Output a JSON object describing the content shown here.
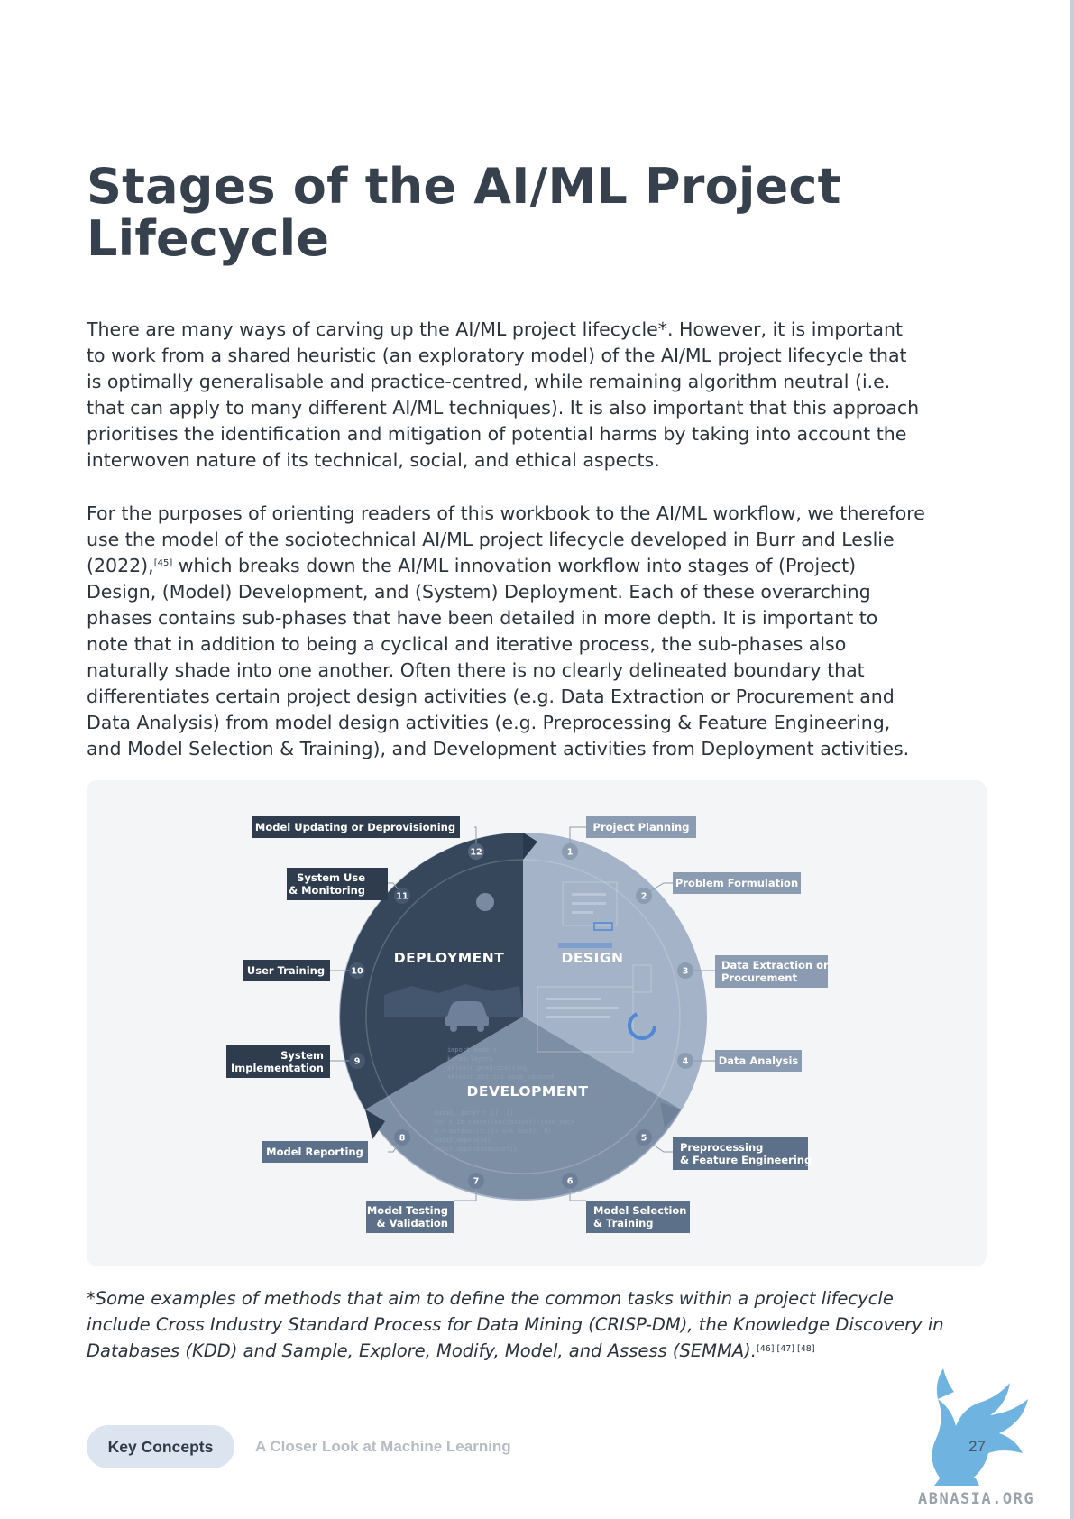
{
  "page": {
    "title": "Stages of the AI/ML Project Lifecycle",
    "para1": "There are many ways of carving up the AI/ML project lifecycle*. However, it is important to work from a shared heuristic (an exploratory model) of the AI/ML project lifecycle that is optimally generalisable and practice-centred, while remaining algorithm neutral (i.e. that can apply to many different AI/ML techniques). It is also important that this approach prioritises the identification and mitigation of potential harms by taking into account the interwoven nature of its technical, social, and ethical aspects.",
    "para2_before": "For the purposes of orienting readers of this workbook to the AI/ML workflow, we therefore use the model of the sociotechnical AI/ML project lifecycle developed in Burr and Leslie (2022),",
    "para2_ref": "[45]",
    "para2_after": " which breaks down the AI/ML innovation workflow into stages of (Project) Design, (Model) Development, and (System) Deployment. Each of these overarching phases contains sub-phases that have been detailed in more depth. It is important to note that in addition to being a cyclical and iterative process, the sub-phases also naturally shade into one another. Often there is no clearly delineated boundary that differentiates certain project design activities (e.g. Data Extraction or Procurement and Data Analysis) from model design activities (e.g. Preprocessing & Feature Engineering, and Model Selection & Training), and Development activities from Deployment activities.",
    "footnote_text": "*Some examples of methods that aim to define the common tasks within a project lifecycle include Cross Industry Standard Process for Data Mining (CRISP-DM), the Knowledge Discovery in Databases (KDD) and Sample, Explore, Modify, Model, and Assess (SEMMA).",
    "footnote_refs": "[46] [47] [48]"
  },
  "diagram": {
    "phases": {
      "deployment": "DEPLOYMENT",
      "design": "DESIGN",
      "development": "DEVELOPMENT"
    },
    "stages": [
      {
        "num": "1",
        "lines": [
          "Project Planning"
        ]
      },
      {
        "num": "2",
        "lines": [
          "Problem Formulation"
        ]
      },
      {
        "num": "3",
        "lines": [
          "Data Extraction or",
          "Procurement"
        ]
      },
      {
        "num": "4",
        "lines": [
          "Data Analysis"
        ]
      },
      {
        "num": "5",
        "lines": [
          "Preprocessing",
          "& Feature Engineering"
        ]
      },
      {
        "num": "6",
        "lines": [
          "Model Selection",
          "& Training"
        ]
      },
      {
        "num": "7",
        "lines": [
          "Model Testing",
          "& Validation"
        ]
      },
      {
        "num": "8",
        "lines": [
          "Model Reporting"
        ]
      },
      {
        "num": "9",
        "lines": [
          "System",
          "Implementation"
        ]
      },
      {
        "num": "10",
        "lines": [
          "User Training"
        ]
      },
      {
        "num": "11",
        "lines": [
          "System Use",
          "& Monitoring"
        ]
      },
      {
        "num": "12",
        "lines": [
          "Model Updating or Deprovisioning"
        ]
      }
    ],
    "colors": {
      "deployment": "#36475c",
      "design": "#a4b3c7",
      "development": "#7d8fa5",
      "label_dark": "#2e3c4e",
      "label_mid": "#5d7089",
      "label_light": "#8a9bb2"
    }
  },
  "footer": {
    "section": "Key Concepts",
    "chapter": "A Closer Look at Machine Learning",
    "page_number": "27",
    "watermark": "ABNASIA.ORG"
  }
}
